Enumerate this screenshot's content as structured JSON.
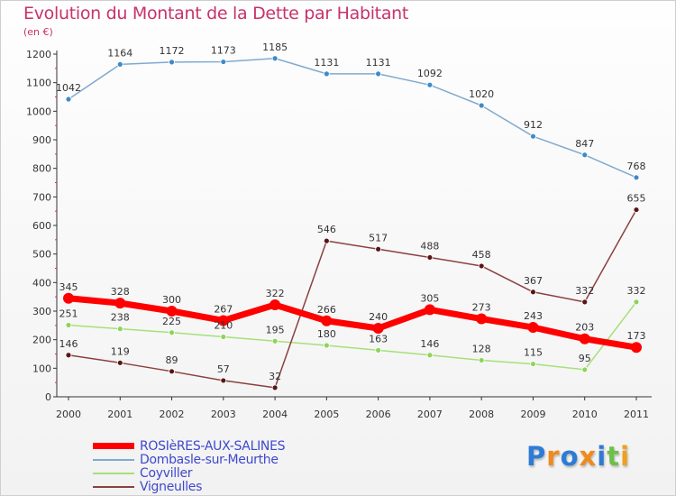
{
  "chart_data": {
    "type": "line",
    "title": "Evolution du Montant de la Dette par Habitant",
    "subtitle": "(en €)",
    "xlabel": "",
    "ylabel": "",
    "ylim": [
      0,
      1200
    ],
    "yticks": [
      0,
      100,
      200,
      300,
      400,
      500,
      600,
      700,
      800,
      900,
      1000,
      1100,
      1200
    ],
    "categories": [
      "2000",
      "2001",
      "2002",
      "2003",
      "2004",
      "2005",
      "2006",
      "2007",
      "2008",
      "2009",
      "2010",
      "2011"
    ],
    "grid": false,
    "legend_position": "bottom-left",
    "series": [
      {
        "name": "ROSIèRES-AUX-SALINES",
        "color": "#ff0000",
        "marker": "#ff0000",
        "width": 7,
        "emphasis": true,
        "values": [
          345,
          328,
          300,
          267,
          322,
          266,
          240,
          305,
          273,
          243,
          203,
          173
        ]
      },
      {
        "name": "Dombasle-sur-Meurthe",
        "color": "#80aad0",
        "marker": "#3f8ac8",
        "width": 1.5,
        "values": [
          1042,
          1164,
          1172,
          1173,
          1185,
          1131,
          1131,
          1092,
          1020,
          912,
          847,
          768
        ]
      },
      {
        "name": "Coyviller",
        "color": "#a6e07a",
        "marker": "#8ed45a",
        "width": 1.5,
        "values": [
          251,
          238,
          225,
          210,
          195,
          180,
          163,
          146,
          128,
          115,
          95,
          332
        ]
      },
      {
        "name": "Vigneulles",
        "color": "#8a4040",
        "marker": "#5a1515",
        "width": 1.5,
        "values": [
          146,
          119,
          89,
          57,
          32,
          546,
          517,
          488,
          458,
          367,
          332,
          655
        ]
      }
    ]
  },
  "logo": {
    "letters": [
      "P",
      "r",
      "o",
      "x",
      "i",
      "t",
      "i"
    ],
    "colors": [
      "#2e7bd6",
      "#f08a1c",
      "#2e7bd6",
      "#f08a1c",
      "#2e7bd6",
      "#6cc04a",
      "#f0a01c"
    ]
  }
}
